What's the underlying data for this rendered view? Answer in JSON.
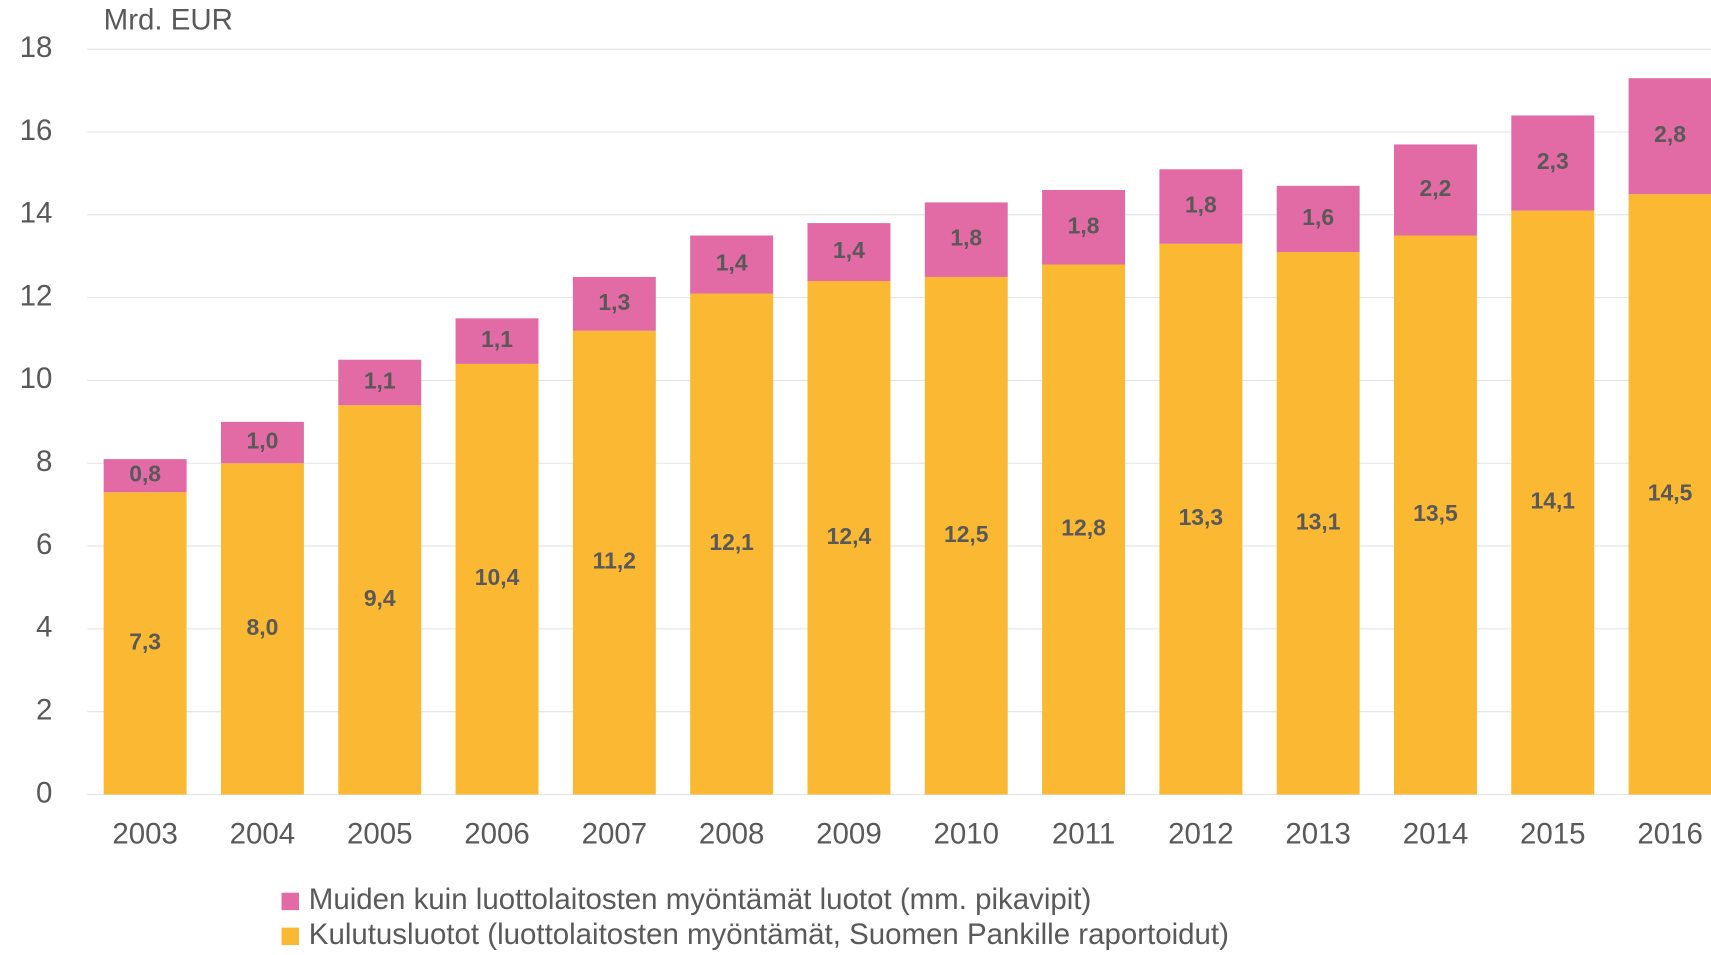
{
  "chart_data": {
    "type": "stacked-bar",
    "ylabel": "Mrd. EUR",
    "categories": [
      "2003",
      "2004",
      "2005",
      "2006",
      "2007",
      "2008",
      "2009",
      "2010",
      "2011",
      "2012",
      "2013",
      "2014",
      "2015",
      "2016"
    ],
    "series": [
      {
        "name": "Kulutusluotot (luottolaitosten myöntämät, Suomen Pankille raportoidut)",
        "color": "#FBB832",
        "values": [
          7.3,
          8.0,
          9.4,
          10.4,
          11.2,
          12.1,
          12.4,
          12.5,
          12.8,
          13.3,
          13.1,
          13.5,
          14.1,
          14.5
        ],
        "value_labels": [
          "7,3",
          "8,0",
          "9,4",
          "10,4",
          "11,2",
          "12,1",
          "12,4",
          "12,5",
          "12,8",
          "13,3",
          "13,1",
          "13,5",
          "14,1",
          "14,5"
        ]
      },
      {
        "name": "Muiden kuin luottolaitosten myöntämät luotot (mm. pikavipit)",
        "color": "#E26BA5",
        "values": [
          0.8,
          1.0,
          1.1,
          1.1,
          1.3,
          1.4,
          1.4,
          1.8,
          1.8,
          1.8,
          1.6,
          2.2,
          2.3,
          2.8
        ],
        "value_labels": [
          "0,8",
          "1,0",
          "1,1",
          "1,1",
          "1,3",
          "1,4",
          "1,4",
          "1,8",
          "1,8",
          "1,8",
          "1,6",
          "2,2",
          "2,3",
          "2,8"
        ]
      }
    ],
    "ylim": [
      0,
      18
    ],
    "yticks": [
      0,
      2,
      4,
      6,
      8,
      10,
      12,
      14,
      16,
      18
    ],
    "grid": true
  }
}
